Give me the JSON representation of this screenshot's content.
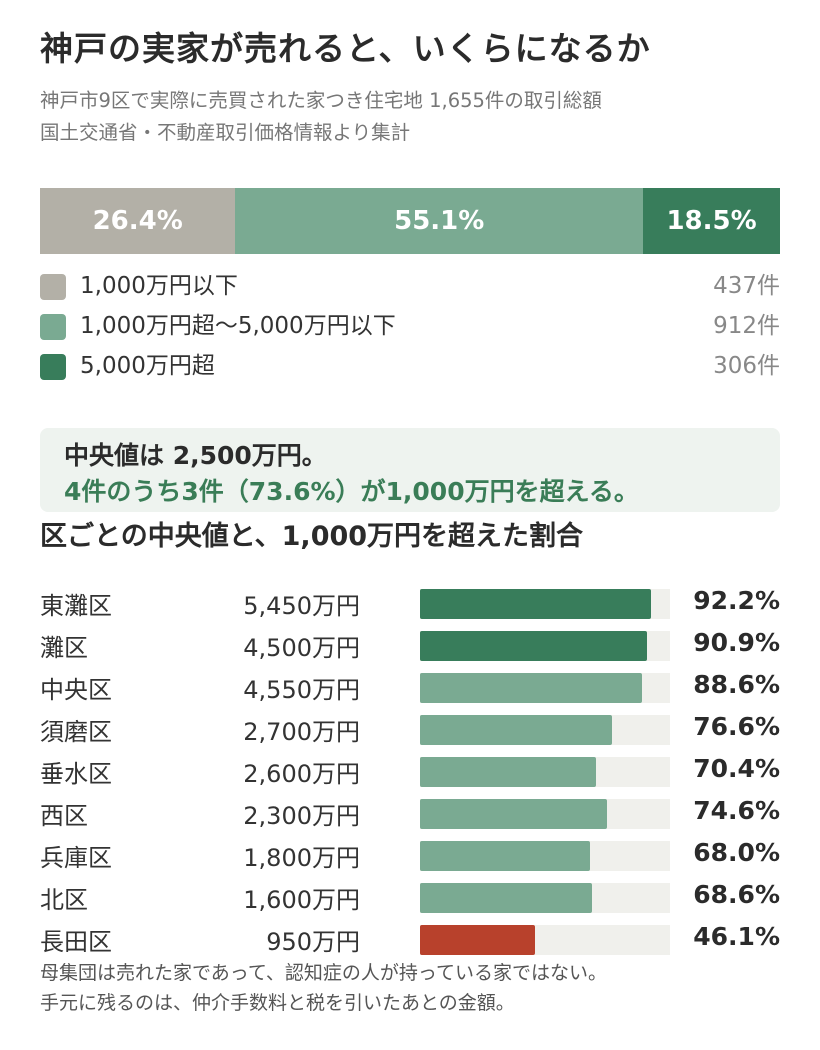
{
  "header": {
    "title": "神戸の実家が売れると、いくらになるか",
    "subtitle_line1": "神戸市9区で実際に売買された家つき住宅地 1,655件の取引総額",
    "subtitle_line2": "国土交通省・不動産取引価格情報より集計"
  },
  "colors": {
    "low": "#b3b0a7",
    "mid": "#7aaa92",
    "high": "#387d5b",
    "alert": "#b8412c",
    "track": "#f0f0ec"
  },
  "breakdown": {
    "segments": [
      {
        "label": "1,000万円以下",
        "percent_label": "26.4%",
        "share": 26.4,
        "count_label": "437件",
        "color": "#b3b0a7"
      },
      {
        "label": "1,000万円超〜5,000万円以下",
        "percent_label": "55.1%",
        "share": 55.1,
        "count_label": "912件",
        "color": "#7aaa92"
      },
      {
        "label": "5,000万円超",
        "percent_label": "18.5%",
        "share": 18.5,
        "count_label": "306件",
        "color": "#387d5b"
      }
    ]
  },
  "callout": {
    "line1": "中央値は 2,500万円。",
    "line2": "4件のうち3件（73.6%）が1,000万円を超える。"
  },
  "wards_section": {
    "title": "区ごとの中央値と、1,000万円を超えた割合"
  },
  "chart_data": [
    {
      "type": "bar",
      "orientation": "horizontal",
      "stacked": true,
      "categories": [
        "1,000万円以下",
        "1,000万円超〜5,000万円以下",
        "5,000万円超"
      ],
      "values": [
        26.4,
        55.1,
        18.5
      ],
      "counts": [
        437,
        912,
        306
      ],
      "unit": "%"
    },
    {
      "type": "bar",
      "orientation": "horizontal",
      "title": "区ごとの中央値と、1,000万円を超えた割合",
      "xlim": [
        0,
        100
      ],
      "rows": [
        {
          "ward": "東灘区",
          "median_label": "5,450万円",
          "pct": 92.2,
          "pct_label": "92.2%",
          "color": "#387d5b"
        },
        {
          "ward": "灘区",
          "median_label": "4,500万円",
          "pct": 90.9,
          "pct_label": "90.9%",
          "color": "#387d5b"
        },
        {
          "ward": "中央区",
          "median_label": "4,550万円",
          "pct": 88.6,
          "pct_label": "88.6%",
          "color": "#7aaa92"
        },
        {
          "ward": "須磨区",
          "median_label": "2,700万円",
          "pct": 76.6,
          "pct_label": "76.6%",
          "color": "#7aaa92"
        },
        {
          "ward": "垂水区",
          "median_label": "2,600万円",
          "pct": 70.4,
          "pct_label": "70.4%",
          "color": "#7aaa92"
        },
        {
          "ward": "西区",
          "median_label": "2,300万円",
          "pct": 74.6,
          "pct_label": "74.6%",
          "color": "#7aaa92"
        },
        {
          "ward": "兵庫区",
          "median_label": "1,800万円",
          "pct": 68.0,
          "pct_label": "68.0%",
          "color": "#7aaa92"
        },
        {
          "ward": "北区",
          "median_label": "1,600万円",
          "pct": 68.6,
          "pct_label": "68.6%",
          "color": "#7aaa92"
        },
        {
          "ward": "長田区",
          "median_label": "950万円",
          "pct": 46.1,
          "pct_label": "46.1%",
          "color": "#b8412c"
        }
      ]
    }
  ],
  "footnotes": {
    "line1": "母集団は売れた家であって、認知症の人が持っている家ではない。",
    "line2": "手元に残るのは、仲介手数料と税を引いたあとの金額。"
  }
}
